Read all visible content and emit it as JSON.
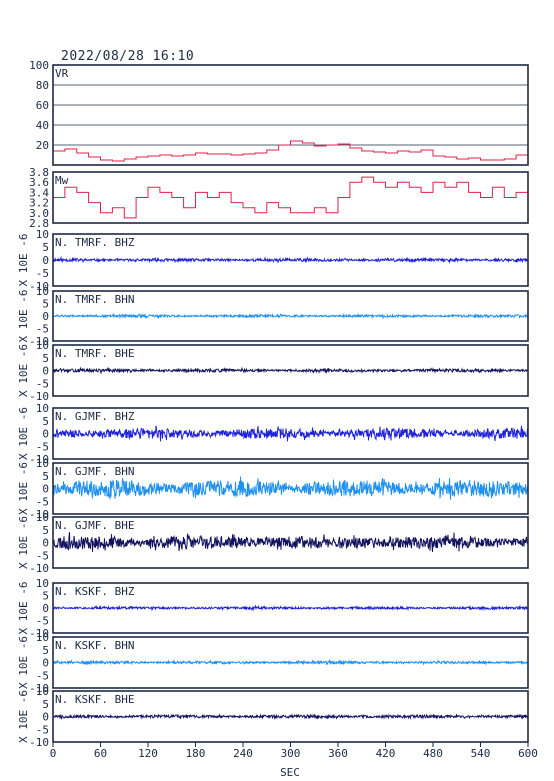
{
  "title": "2022/08/28 16:10",
  "chart_data": {
    "type": "line",
    "title": "2022/08/28 16:10",
    "x": {
      "label": "SEC",
      "range": [
        0,
        600
      ],
      "ticks": [
        "0",
        "60",
        "120",
        "180",
        "240",
        "300",
        "360",
        "420",
        "480",
        "540",
        "600"
      ]
    },
    "panels": [
      {
        "label": "VR",
        "ylabel": "",
        "ylim": [
          0,
          100
        ],
        "yticks": [
          "100",
          "80",
          "60",
          "40",
          "20"
        ],
        "grid": true,
        "color": "#e0204a",
        "series": {
          "kind": "step",
          "x": [
            0,
            15,
            30,
            45,
            60,
            75,
            90,
            105,
            120,
            135,
            150,
            165,
            180,
            195,
            210,
            225,
            240,
            255,
            270,
            285,
            300,
            315,
            330,
            345,
            360,
            375,
            390,
            405,
            420,
            435,
            450,
            465,
            480,
            495,
            510,
            525,
            540,
            555,
            570,
            585,
            600
          ],
          "y": [
            14,
            16,
            12,
            8,
            5,
            4,
            6,
            8,
            9,
            10,
            9,
            10,
            12,
            11,
            11,
            10,
            11,
            12,
            15,
            20,
            24,
            22,
            19,
            20,
            21,
            17,
            14,
            13,
            12,
            14,
            13,
            15,
            9,
            8,
            6,
            7,
            5,
            5,
            6,
            10,
            20
          ]
        }
      },
      {
        "label": "Mw",
        "ylabel": "",
        "ylim": [
          2.8,
          3.8
        ],
        "yticks": [
          "3.8",
          "3.6",
          "3.4",
          "3.2",
          "3.0",
          "2.8"
        ],
        "grid": false,
        "color": "#e0204a",
        "series": {
          "kind": "step",
          "x": [
            0,
            15,
            30,
            45,
            60,
            75,
            90,
            105,
            120,
            135,
            150,
            165,
            180,
            195,
            210,
            225,
            240,
            255,
            270,
            285,
            300,
            315,
            330,
            345,
            360,
            375,
            390,
            405,
            420,
            435,
            450,
            465,
            480,
            495,
            510,
            525,
            540,
            555,
            570,
            585,
            600
          ],
          "y": [
            3.3,
            3.5,
            3.4,
            3.2,
            3.0,
            3.1,
            2.9,
            3.3,
            3.5,
            3.4,
            3.3,
            3.1,
            3.4,
            3.3,
            3.4,
            3.2,
            3.1,
            3.0,
            3.2,
            3.1,
            3.0,
            3.0,
            3.1,
            3.0,
            3.3,
            3.6,
            3.7,
            3.6,
            3.5,
            3.6,
            3.5,
            3.4,
            3.6,
            3.5,
            3.6,
            3.4,
            3.3,
            3.5,
            3.3,
            3.4,
            3.5
          ]
        }
      },
      {
        "label": "N. TMRF. BHZ",
        "ylabel": "X 10E -6",
        "ylim": [
          -10,
          10
        ],
        "yticks": [
          "10",
          "5",
          "0",
          "-5",
          "-10"
        ],
        "color": "#1f22d6",
        "series": {
          "kind": "waveform",
          "amplitude": 0.6,
          "seed": 11
        }
      },
      {
        "label": "N. TMRF. BHN",
        "ylabel": "X 10E -6",
        "ylim": [
          -10,
          10
        ],
        "yticks": [
          "10",
          "5",
          "0",
          "-5",
          "-10"
        ],
        "color": "#1e90f0",
        "series": {
          "kind": "waveform",
          "amplitude": 0.5,
          "seed": 12
        }
      },
      {
        "label": "N. TMRF. BHE",
        "ylabel": "X 10E -6",
        "ylim": [
          -10,
          10
        ],
        "yticks": [
          "10",
          "5",
          "0",
          "-5",
          "-10"
        ],
        "color": "#12125e",
        "series": {
          "kind": "waveform",
          "amplitude": 0.6,
          "seed": 13
        }
      },
      {
        "label": "N. GJMF. BHZ",
        "ylabel": "X 10E -6",
        "ylim": [
          -10,
          10
        ],
        "yticks": [
          "10",
          "5",
          "0",
          "-5",
          "-10"
        ],
        "color": "#1f22d6",
        "series": {
          "kind": "waveform",
          "amplitude": 2.0,
          "seed": 21
        }
      },
      {
        "label": "N. GJMF. BHN",
        "ylabel": "X 10E -6",
        "ylim": [
          -10,
          10
        ],
        "yticks": [
          "10",
          "5",
          "0",
          "-5",
          "-10"
        ],
        "color": "#1e90f0",
        "series": {
          "kind": "waveform",
          "amplitude": 3.2,
          "seed": 22
        }
      },
      {
        "label": "N. GJMF. BHE",
        "ylabel": "X 10E -6",
        "ylim": [
          -10,
          10
        ],
        "yticks": [
          "10",
          "5",
          "0",
          "-5",
          "-10"
        ],
        "color": "#12125e",
        "series": {
          "kind": "waveform",
          "amplitude": 2.6,
          "seed": 23
        }
      },
      {
        "label": "N. KSKF. BHZ",
        "ylabel": "X 10E -6",
        "ylim": [
          -10,
          10
        ],
        "yticks": [
          "10",
          "5",
          "0",
          "-5",
          "-10"
        ],
        "color": "#1f22d6",
        "series": {
          "kind": "waveform",
          "amplitude": 0.5,
          "seed": 31
        }
      },
      {
        "label": "N. KSKF. BHN",
        "ylabel": "X 10E -6",
        "ylim": [
          -10,
          10
        ],
        "yticks": [
          "10",
          "5",
          "0",
          "-5",
          "-10"
        ],
        "color": "#1e90f0",
        "series": {
          "kind": "waveform",
          "amplitude": 0.5,
          "seed": 32
        }
      },
      {
        "label": "N. KSKF. BHE",
        "ylabel": "X 10E -6",
        "ylim": [
          -10,
          10
        ],
        "yticks": [
          "10",
          "5",
          "0",
          "-5",
          "-10"
        ],
        "color": "#12125e",
        "series": {
          "kind": "waveform",
          "amplitude": 0.6,
          "seed": 33
        }
      }
    ]
  }
}
